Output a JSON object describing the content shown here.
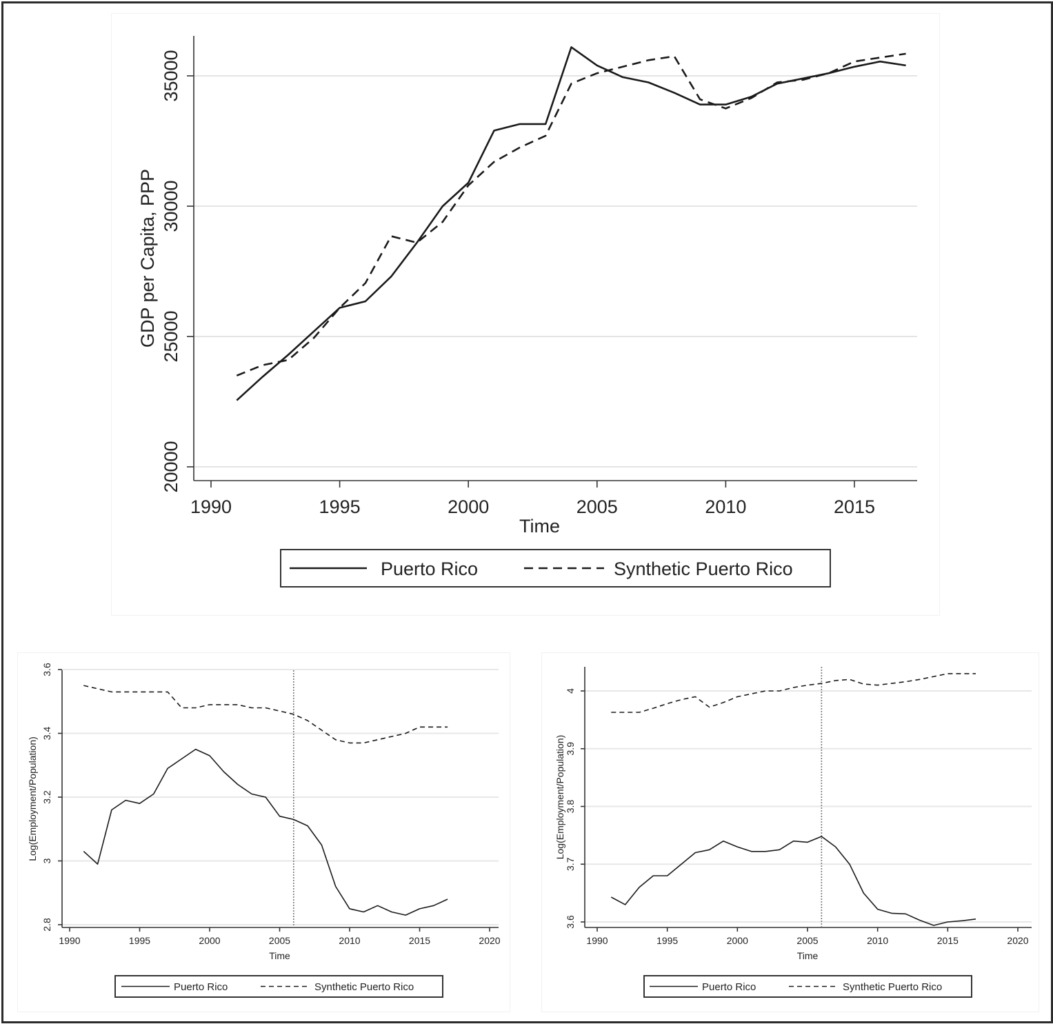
{
  "chart_data": [
    {
      "type": "line",
      "id": "top",
      "xlabel": "Time",
      "ylabel": "GDP per Capita, PPP",
      "xlim": [
        1990,
        2017.5
      ],
      "ylim": [
        20000,
        36500
      ],
      "xticks": [
        1990,
        1995,
        2000,
        2005,
        2010,
        2015
      ],
      "yticks": [
        20000,
        25000,
        30000,
        35000
      ],
      "grid": true,
      "legend": [
        "Puerto Rico",
        "Synthetic Puerto Rico"
      ],
      "legend_position": "bottom",
      "series": [
        {
          "name": "Puerto Rico",
          "style": "solid",
          "x": [
            1991,
            1992,
            1993,
            1994,
            1995,
            1996,
            1997,
            1998,
            1999,
            2000,
            2001,
            2002,
            2003,
            2004,
            2005,
            2006,
            2007,
            2008,
            2009,
            2010,
            2011,
            2012,
            2013,
            2014,
            2015,
            2016,
            2017
          ],
          "values": [
            22550,
            23450,
            24300,
            25200,
            26100,
            26350,
            27300,
            28600,
            30000,
            30900,
            32900,
            33150,
            33150,
            36100,
            35400,
            34950,
            34750,
            34350,
            33900,
            33900,
            34200,
            34700,
            34900,
            35100,
            35350,
            35550,
            35400
          ]
        },
        {
          "name": "Synthetic Puerto Rico",
          "style": "dashed",
          "x": [
            1991,
            1992,
            1993,
            1994,
            1995,
            1996,
            1997,
            1998,
            1999,
            2000,
            2001,
            2002,
            2003,
            2004,
            2005,
            2006,
            2007,
            2008,
            2009,
            2010,
            2011,
            2012,
            2013,
            2014,
            2015,
            2016,
            2017
          ],
          "values": [
            23500,
            23900,
            24100,
            24950,
            26100,
            27050,
            28850,
            28600,
            29400,
            30800,
            31700,
            32250,
            32700,
            34700,
            35100,
            35350,
            35600,
            35750,
            34100,
            33750,
            34150,
            34750,
            34850,
            35100,
            35550,
            35700,
            35850
          ]
        }
      ]
    },
    {
      "type": "line",
      "id": "bottom-left",
      "xlabel": "Time",
      "ylabel": "Log(Employment/Population)",
      "xlim": [
        1990,
        2020
      ],
      "ylim": [
        2.8,
        3.6
      ],
      "xticks": [
        1990,
        1995,
        2000,
        2005,
        2010,
        2015,
        2020
      ],
      "yticks": [
        2.8,
        3,
        3.2,
        3.4,
        3.6
      ],
      "ytick_labels": [
        "2.8",
        "3",
        "3.2",
        "3.4",
        "3.6"
      ],
      "grid": true,
      "vline": 2006,
      "legend": [
        "Puerto Rico",
        "Synthetic Puerto Rico"
      ],
      "legend_position": "bottom",
      "series": [
        {
          "name": "Puerto Rico",
          "style": "solid",
          "x": [
            1991,
            1992,
            1993,
            1994,
            1995,
            1996,
            1997,
            1998,
            1999,
            2000,
            2001,
            2002,
            2003,
            2004,
            2005,
            2006,
            2007,
            2008,
            2009,
            2010,
            2011,
            2012,
            2013,
            2014,
            2015,
            2016,
            2017
          ],
          "values": [
            3.03,
            2.99,
            3.16,
            3.19,
            3.18,
            3.21,
            3.29,
            3.32,
            3.35,
            3.33,
            3.28,
            3.24,
            3.21,
            3.2,
            3.14,
            3.13,
            3.11,
            3.05,
            2.92,
            2.85,
            2.84,
            2.86,
            2.84,
            2.83,
            2.85,
            2.86,
            2.88
          ]
        },
        {
          "name": "Synthetic Puerto Rico",
          "style": "dashed",
          "x": [
            1991,
            1992,
            1993,
            1994,
            1995,
            1996,
            1997,
            1998,
            1999,
            2000,
            2001,
            2002,
            2003,
            2004,
            2005,
            2006,
            2007,
            2008,
            2009,
            2010,
            2011,
            2012,
            2013,
            2014,
            2015,
            2016,
            2017
          ],
          "values": [
            3.55,
            3.54,
            3.53,
            3.53,
            3.53,
            3.53,
            3.53,
            3.48,
            3.48,
            3.49,
            3.49,
            3.49,
            3.48,
            3.48,
            3.47,
            3.46,
            3.44,
            3.41,
            3.38,
            3.37,
            3.37,
            3.38,
            3.39,
            3.4,
            3.42,
            3.42,
            3.42
          ]
        }
      ]
    },
    {
      "type": "line",
      "id": "bottom-right",
      "xlabel": "Time",
      "ylabel": "Log(Employment/Population)",
      "xlim": [
        1990,
        2020
      ],
      "ylim": [
        3.585,
        4.045
      ],
      "xticks": [
        1990,
        1995,
        2000,
        2005,
        2010,
        2015,
        2020
      ],
      "yticks": [
        3.6,
        3.7,
        3.8,
        3.9,
        4
      ],
      "ytick_labels": [
        "3.6",
        "3.7",
        "3.8",
        "3.9",
        "4"
      ],
      "grid": true,
      "vline": 2006,
      "legend": [
        "Puerto Rico",
        "Synthetic Puerto Rico"
      ],
      "legend_position": "bottom",
      "series": [
        {
          "name": "Puerto Rico",
          "style": "solid",
          "x": [
            1991,
            1992,
            1993,
            1994,
            1995,
            1996,
            1997,
            1998,
            1999,
            2000,
            2001,
            2002,
            2003,
            2004,
            2005,
            2006,
            2007,
            2008,
            2009,
            2010,
            2011,
            2012,
            2013,
            2014,
            2015,
            2016,
            2017
          ],
          "values": [
            3.643,
            3.63,
            3.66,
            3.68,
            3.68,
            3.7,
            3.72,
            3.725,
            3.74,
            3.73,
            3.722,
            3.722,
            3.725,
            3.74,
            3.738,
            3.748,
            3.73,
            3.7,
            3.65,
            3.622,
            3.615,
            3.614,
            3.603,
            3.594,
            3.6,
            3.602,
            3.605
          ]
        },
        {
          "name": "Synthetic Puerto Rico",
          "style": "dashed",
          "x": [
            1991,
            1992,
            1993,
            1994,
            1995,
            1996,
            1997,
            1998,
            1999,
            2000,
            2001,
            2002,
            2003,
            2004,
            2005,
            2006,
            2007,
            2008,
            2009,
            2010,
            2011,
            2012,
            2013,
            2014,
            2015,
            2016,
            2017
          ],
          "values": [
            3.963,
            3.963,
            3.963,
            3.97,
            3.978,
            3.985,
            3.99,
            3.972,
            3.98,
            3.99,
            3.995,
            4.0,
            4.0,
            4.006,
            4.01,
            4.013,
            4.018,
            4.02,
            4.012,
            4.01,
            4.013,
            4.016,
            4.02,
            4.025,
            4.03,
            4.03,
            4.03
          ]
        }
      ]
    }
  ]
}
